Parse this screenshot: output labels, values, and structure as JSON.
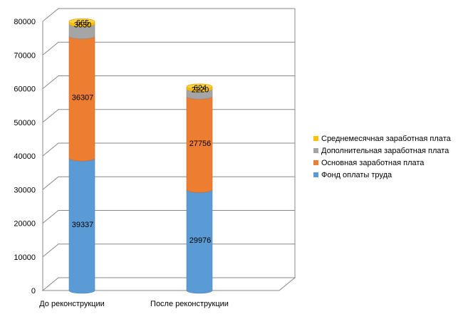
{
  "chart_data": {
    "type": "bar",
    "stacked": true,
    "categories": [
      "До реконструкции",
      "После реконструкции"
    ],
    "series": [
      {
        "name": "Фонд оплаты труда",
        "values": [
          39337,
          29976
        ],
        "color": "#5b9bd5"
      },
      {
        "name": "Основная заработная плата",
        "values": [
          36307,
          27756
        ],
        "color": "#ed7d31"
      },
      {
        "name": "Дополнительная заработная плата",
        "values": [
          3630,
          2220
        ],
        "color": "#a5a5a5"
      },
      {
        "name": "Среднемесячная заработная плата",
        "values": [
          665,
          624
        ],
        "color": "#ffc000"
      }
    ],
    "y_ticks": [
      "0",
      "10000",
      "20000",
      "30000",
      "40000",
      "50000",
      "60000",
      "70000",
      "80000"
    ],
    "ylim": [
      0,
      80000
    ],
    "grid": true,
    "legend_position": "right"
  }
}
